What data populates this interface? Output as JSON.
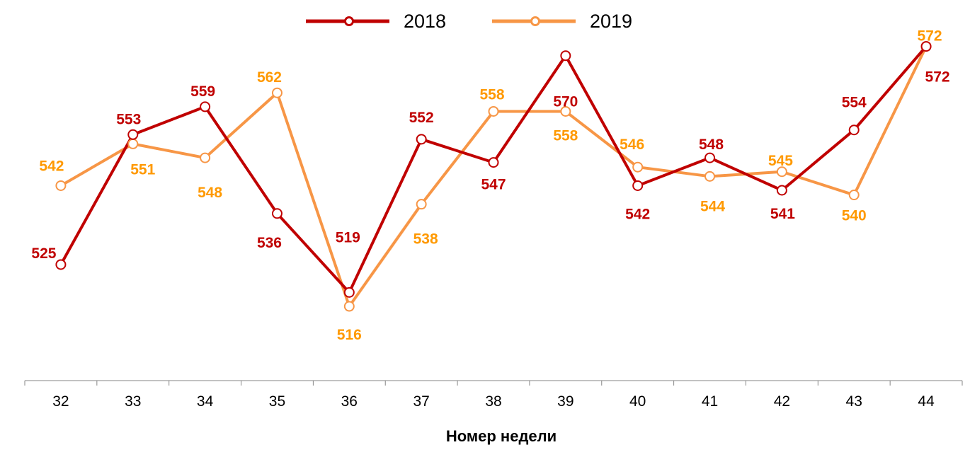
{
  "chart_data": {
    "type": "line",
    "title": "",
    "xlabel": "Номер недели",
    "ylabel": "",
    "categories": [
      "32",
      "33",
      "34",
      "35",
      "36",
      "37",
      "38",
      "39",
      "40",
      "41",
      "42",
      "43",
      "44"
    ],
    "ylim": [
      500,
      582
    ],
    "grid": false,
    "legend_placement": "top",
    "series": [
      {
        "name": "2018",
        "color": "#C00000",
        "label_color": "#C00000",
        "values": [
          525,
          553,
          559,
          536,
          519,
          552,
          547,
          570,
          542,
          548,
          541,
          554,
          572
        ]
      },
      {
        "name": "2019",
        "color": "#F79646",
        "label_color": "#FF9900",
        "values": [
          542,
          551,
          548,
          562,
          516,
          538,
          558,
          558,
          546,
          544,
          545,
          540,
          572
        ]
      }
    ]
  }
}
